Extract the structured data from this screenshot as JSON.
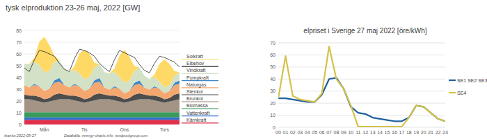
{
  "chart_data": [
    {
      "type": "area",
      "stacked": true,
      "title": "tysk elproduktion 23-26 maj, 2022  [GW]",
      "categories": [
        null,
        null,
        null,
        null,
        "Mån",
        null,
        null,
        null,
        null,
        null,
        null,
        null,
        "Tis",
        null,
        null,
        null,
        null,
        null,
        null,
        null,
        "Ons",
        null,
        null,
        null,
        null,
        null,
        null,
        null,
        "Tors",
        null,
        null,
        null
      ],
      "ylim": [
        0,
        80
      ],
      "yticks": [
        0,
        10,
        20,
        30,
        40,
        50,
        60,
        70,
        80
      ],
      "grid": true,
      "legend": "right",
      "annotations": [
        "ihanka 2022-05-27",
        "Datakälla: energy-charts.info, nordpoolgroup.com"
      ],
      "series": [
        {
          "name": "Solkraft",
          "color": "#ffd966",
          "values": [
            0,
            0,
            3,
            20,
            30,
            22,
            5,
            0,
            0,
            0,
            3,
            17,
            25,
            20,
            4,
            0,
            0,
            0,
            3,
            18,
            28,
            20,
            4,
            0,
            0,
            0,
            2,
            15,
            24,
            18,
            4,
            0
          ]
        },
        {
          "name": "Elbehov",
          "type": "line",
          "color": "#262626",
          "values": [
            48,
            45,
            55,
            63,
            62,
            60,
            58,
            52,
            47,
            45,
            56,
            64,
            63,
            61,
            58,
            52,
            48,
            45,
            55,
            63,
            61,
            59,
            57,
            51,
            46,
            44,
            52,
            58,
            57,
            55,
            53,
            49
          ]
        },
        {
          "name": "Vindkraft",
          "color": "#d3e2c7",
          "values": [
            18,
            20,
            19,
            18,
            16,
            15,
            16,
            15,
            14,
            13,
            12,
            11,
            10,
            10,
            11,
            12,
            13,
            14,
            12,
            10,
            9,
            9,
            10,
            11,
            10,
            9,
            8,
            6,
            5,
            5,
            6,
            7
          ]
        },
        {
          "name": "Pumpkraft",
          "color": "#3d85c6",
          "values": [
            0,
            0,
            1,
            0,
            0,
            0,
            2,
            3,
            0,
            0,
            1,
            0,
            0,
            0,
            2,
            3,
            0,
            0,
            1,
            0,
            0,
            0,
            2,
            3,
            0,
            0,
            1,
            0,
            0,
            0,
            2,
            3
          ]
        },
        {
          "name": "Naturgas",
          "color": "#f4a76f",
          "values": [
            8,
            7,
            9,
            9,
            7,
            8,
            10,
            10,
            8,
            7,
            9,
            9,
            7,
            8,
            10,
            10,
            6,
            5,
            7,
            7,
            5,
            6,
            8,
            8,
            6,
            5,
            7,
            7,
            5,
            6,
            8,
            8
          ]
        },
        {
          "name": "Stenkol",
          "color": "#4d4d4d",
          "values": [
            4,
            3,
            4,
            4,
            3,
            3,
            5,
            5,
            4,
            3,
            4,
            4,
            3,
            3,
            5,
            5,
            4,
            3,
            4,
            4,
            3,
            3,
            5,
            5,
            4,
            3,
            4,
            4,
            3,
            3,
            5,
            5
          ]
        },
        {
          "name": "Brunkol",
          "color": "#a39486",
          "values": [
            11,
            11,
            10,
            9,
            8,
            9,
            10,
            11,
            11,
            11,
            10,
            9,
            8,
            9,
            10,
            11,
            11,
            11,
            10,
            9,
            8,
            9,
            10,
            11,
            11,
            11,
            10,
            9,
            8,
            9,
            10,
            11
          ]
        },
        {
          "name": "Biomassa",
          "color": "#3a9b5c",
          "values": [
            4.5,
            4.5,
            4.5,
            4.5,
            4.5,
            4.5,
            4.5,
            4.5,
            4.5,
            4.5,
            4.5,
            4.5,
            4.5,
            4.5,
            4.5,
            4.5,
            4.5,
            4.5,
            4.5,
            4.5,
            4.5,
            4.5,
            4.5,
            4.5,
            4.5,
            4.5,
            4.5,
            4.5,
            4.5,
            4.5,
            4.5,
            4.5
          ]
        },
        {
          "name": "Vattenkraft",
          "color": "#2f6fd0",
          "values": [
            2,
            2,
            2,
            2,
            2,
            2,
            2,
            2,
            2,
            2,
            2,
            2,
            2,
            2,
            2,
            2,
            2,
            2,
            2,
            2,
            2,
            2,
            2,
            2,
            2,
            2,
            2,
            2,
            2,
            2,
            2,
            2
          ]
        },
        {
          "name": "Kärnkraft",
          "color": "#e0304a",
          "values": [
            4,
            4,
            4,
            4,
            4,
            4,
            4,
            4,
            4,
            4,
            4,
            4,
            4,
            4,
            4,
            4,
            4,
            4,
            4,
            4,
            4,
            4,
            4,
            4,
            4,
            4,
            4,
            4,
            4,
            4,
            4,
            4
          ]
        }
      ]
    },
    {
      "type": "line",
      "title": "elpriset i Sverige 27 maj 2022 [öre/kWh]",
      "categories": [
        "00",
        "01",
        "02",
        "03",
        "04",
        "05",
        "06",
        "07",
        "08",
        "09",
        "10",
        "11",
        "12",
        "13",
        "14",
        "15",
        "16",
        "17",
        "18",
        "19",
        "20",
        "21",
        "22",
        "23"
      ],
      "ylim": [
        0,
        70
      ],
      "yticks": [
        0,
        10,
        20,
        30,
        40,
        50,
        60,
        70
      ],
      "grid": true,
      "legend": "right",
      "series": [
        {
          "name": "SE1 SE2 SE3",
          "color": "#1f5f9e",
          "values": [
            24,
            24,
            23,
            22,
            21,
            21,
            27,
            40,
            41,
            32,
            17,
            12,
            11,
            8,
            7,
            6,
            5,
            5,
            8,
            18,
            17,
            12,
            7,
            5
          ]
        },
        {
          "name": "SE4",
          "color": "#d4c24a",
          "values": [
            24,
            59,
            26,
            23,
            22,
            21,
            28,
            67,
            40,
            32,
            18,
            0.5,
            0.5,
            0.5,
            0.5,
            0.5,
            0.5,
            0.5,
            8,
            18,
            17,
            12,
            7,
            5
          ]
        }
      ]
    }
  ]
}
